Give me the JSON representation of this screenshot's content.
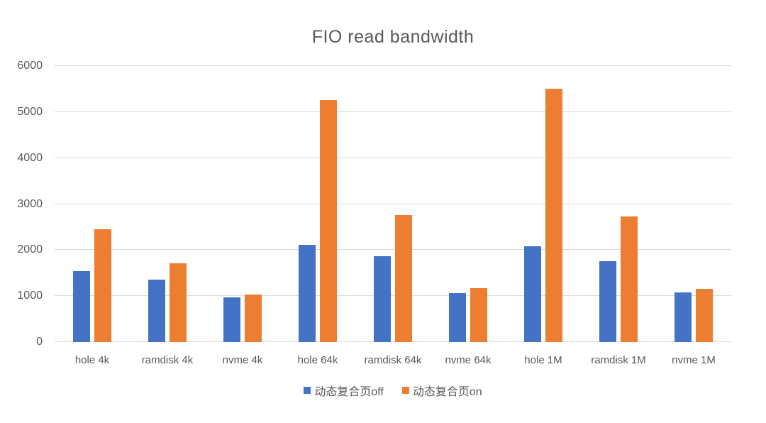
{
  "chart_data": {
    "type": "bar",
    "title": "FIO read bandwidth",
    "xlabel": "",
    "ylabel": "",
    "categories": [
      "hole 4k",
      "ramdisk 4k",
      "nvme 4k",
      "hole 64k",
      "ramdisk 64k",
      "nvme 64k",
      "hole 1M",
      "ramdisk 1M",
      "nvme 1M"
    ],
    "series": [
      {
        "name": "动态复合页off",
        "color": "#4472C4",
        "values": [
          1550,
          1360,
          970,
          2110,
          1860,
          1070,
          2080,
          1760,
          1080
        ]
      },
      {
        "name": "动态复合页on",
        "color": "#ED7D31",
        "values": [
          2460,
          1720,
          1040,
          5260,
          2760,
          1180,
          5500,
          2730,
          1160
        ]
      }
    ],
    "ylim": [
      0,
      6000
    ],
    "yticks": [
      0,
      1000,
      2000,
      3000,
      4000,
      5000,
      6000
    ],
    "grid": true,
    "legend_position": "bottom"
  },
  "colors": {
    "background": "#FFFFFF",
    "title_text": "#595959",
    "axis_text": "#595959",
    "gridline": "#D9D9D9",
    "series_off": "#4472C4",
    "series_on": "#ED7D31"
  }
}
